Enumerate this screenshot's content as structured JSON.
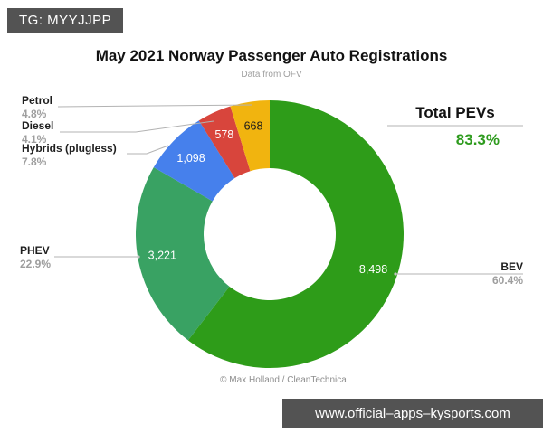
{
  "badge": {
    "text": "TG: MYYJJPP"
  },
  "header": {
    "title": "May 2021 Norway Passenger Auto Registrations",
    "subtitle": "Data from OFV"
  },
  "summary": {
    "label": "Total PEVs",
    "value": "83.3%",
    "value_color": "#2E9B1E"
  },
  "attribution": "© Max Holland / CleanTechnica",
  "watermark": {
    "url": "www.official–apps–kysports.com"
  },
  "chart_data": {
    "type": "pie",
    "donut": true,
    "title": "May 2021 Norway Passenger Auto Registrations",
    "source_note": "Data from OFV",
    "start_angle_deg": 0,
    "direction": "clockwise",
    "slices": [
      {
        "name": "BEV",
        "value": 8498,
        "value_label": "8,498",
        "pct_label": "60.4%",
        "color": "#2E9C19",
        "text_color": "#ffffff"
      },
      {
        "name": "PHEV",
        "value": 3221,
        "value_label": "3,221",
        "pct_label": "22.9%",
        "color": "#39A263",
        "text_color": "#ffffff"
      },
      {
        "name": "Hybrids (plugless)",
        "value": 1098,
        "value_label": "1,098",
        "pct_label": "7.8%",
        "color": "#4680EC",
        "text_color": "#ffffff"
      },
      {
        "name": "Diesel",
        "value": 578,
        "value_label": "578",
        "pct_label": "4.1%",
        "color": "#D8453C",
        "text_color": "#ffffff"
      },
      {
        "name": "Petrol",
        "value": 668,
        "value_label": "668",
        "pct_label": "4.8%",
        "color": "#F1B40F",
        "text_color": "#1b1b1b"
      }
    ]
  }
}
